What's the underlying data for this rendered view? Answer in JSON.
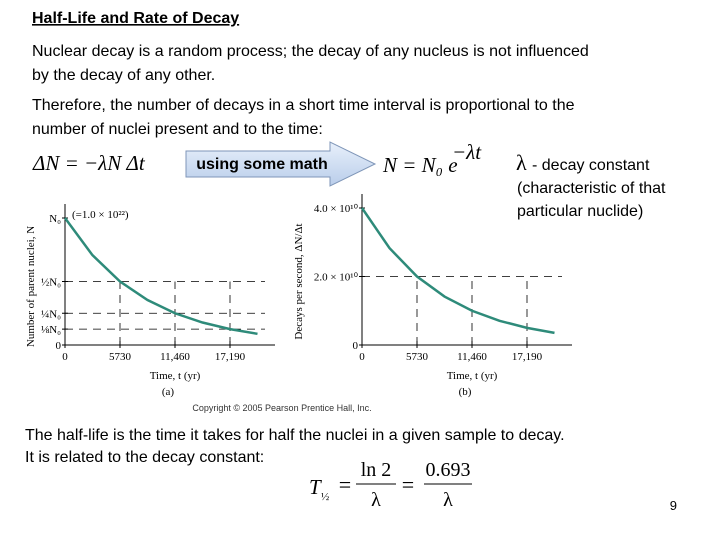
{
  "title": "Half-Life and Rate of Decay",
  "paragraphs": [
    [
      "Nuclear decay is a random process; the decay of any nucleus is not influenced",
      "by the decay of any other."
    ],
    [
      "Therefore, the number of decays in a short time interval is proportional to the",
      "number of nuclei present and to the time:"
    ]
  ],
  "equation_rate": "ΔN = −λN Δt",
  "arrow_label": "using some math",
  "equation_solution": {
    "base": "N = N₀ e",
    "exponent": "−λt"
  },
  "lambda_note": {
    "symbol": "λ",
    "lines": [
      "- decay constant",
      "(characteristic of that",
      "particular nuclide)"
    ]
  },
  "chart_data": [
    {
      "type": "line",
      "caption": "(a)",
      "ylabel": "Number of parent nuclei, N",
      "xlabel": "Time, t (yr)",
      "annotation": "(=1.0 × 10²²)",
      "color": "#2e8b7a",
      "grid": true,
      "x": [
        0,
        2865,
        5730,
        8595,
        11460,
        14325,
        17190,
        20055
      ],
      "values": [
        1,
        0.707,
        0.5,
        0.354,
        0.25,
        0.177,
        0.125,
        0.088
      ],
      "xlim": [
        0,
        22920
      ],
      "ylim": [
        0,
        1
      ],
      "xticks": [
        0,
        5730,
        {
          "value": 11460,
          "label": "11,460"
        },
        {
          "value": 17190,
          "label": "17,190"
        }
      ],
      "yticks": [
        0,
        {
          "value": 0.125,
          "label": "⅛N₀"
        },
        {
          "value": 0.25,
          "label": "¼N₀"
        },
        {
          "value": 0.5,
          "label": "½N₀"
        },
        {
          "value": 1,
          "label": "N₀"
        }
      ]
    },
    {
      "type": "line",
      "caption": "(b)",
      "ylabel": "Decays per second, ΔN/Δt",
      "xlabel": "Time, t (yr)",
      "color": "#2e8b7a",
      "grid": true,
      "x": [
        0,
        2865,
        5730,
        8595,
        11460,
        14325,
        17190,
        20055
      ],
      "values": [
        40000000000,
        28280000000,
        20000000000,
        14140000000,
        10000000000,
        7070000000,
        5000000000,
        3540000000
      ],
      "xlim": [
        0,
        22920
      ],
      "ylim": [
        0,
        40000000000
      ],
      "xticks": [
        0,
        5730,
        {
          "value": 11460,
          "label": "11,460"
        },
        {
          "value": 17190,
          "label": "17,190"
        }
      ],
      "yticks": [
        0,
        {
          "value": 20000000000,
          "label": "2.0 × 10¹⁰"
        },
        {
          "value": 40000000000,
          "label": "4.0 × 10¹⁰"
        }
      ]
    }
  ],
  "copyright": "Copyright © 2005 Pearson Prentice Hall, Inc.",
  "half_life_text": [
    "The half-life is the time it takes for half the nuclei in a given sample to decay.",
    "It is related to the decay constant:"
  ],
  "half_life_formula": {
    "lhs": "T",
    "lhs_sub": "½",
    "eq1": "=",
    "num1": "ln 2",
    "den1": "λ",
    "eq2": "=",
    "num2": "0.693",
    "den2": "λ"
  },
  "page_number": 9
}
